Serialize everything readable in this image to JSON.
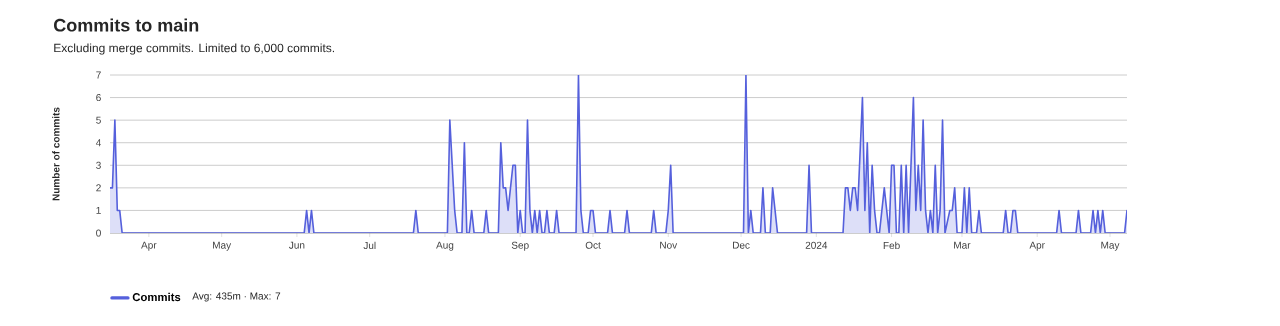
{
  "chart_data": {
    "type": "area",
    "title": "Commits to main",
    "subtitle": "Excluding merge commits. Limited to 6,000 commits.",
    "ylabel": "Number of commits",
    "annotations": [
      "Avg: 435m · Max: 7"
    ],
    "x": [
      "2023-03-16",
      "2023-03-17",
      "2023-03-18",
      "2023-03-19",
      "2023-03-20",
      "2023-03-21",
      "2023-06-04",
      "2023-06-05",
      "2023-06-06",
      "2023-06-07",
      "2023-06-08",
      "2023-07-19",
      "2023-07-20",
      "2023-07-21",
      "2023-08-02",
      "2023-08-03",
      "2023-08-04",
      "2023-08-05",
      "2023-08-06",
      "2023-08-08",
      "2023-08-09",
      "2023-08-10",
      "2023-08-11",
      "2023-08-12",
      "2023-08-13",
      "2023-08-17",
      "2023-08-18",
      "2023-08-19",
      "2023-08-23",
      "2023-08-24",
      "2023-08-25",
      "2023-08-26",
      "2023-08-27",
      "2023-08-28",
      "2023-08-29",
      "2023-08-30",
      "2023-08-31",
      "2023-09-01",
      "2023-09-02",
      "2023-09-03",
      "2023-09-04",
      "2023-09-05",
      "2023-09-06",
      "2023-09-07",
      "2023-09-08",
      "2023-09-09",
      "2023-09-10",
      "2023-09-11",
      "2023-09-12",
      "2023-09-13",
      "2023-09-15",
      "2023-09-16",
      "2023-09-17",
      "2023-09-24",
      "2023-09-25",
      "2023-09-26",
      "2023-09-27",
      "2023-09-29",
      "2023-09-30",
      "2023-10-01",
      "2023-10-02",
      "2023-10-07",
      "2023-10-08",
      "2023-10-09",
      "2023-10-14",
      "2023-10-15",
      "2023-10-16",
      "2023-10-25",
      "2023-10-26",
      "2023-10-27",
      "2023-10-31",
      "2023-11-01",
      "2023-11-02",
      "2023-11-03",
      "2023-12-02",
      "2023-12-03",
      "2023-12-04",
      "2023-12-05",
      "2023-12-06",
      "2023-12-09",
      "2023-12-10",
      "2023-12-11",
      "2023-12-13",
      "2023-12-14",
      "2023-12-15",
      "2023-12-16",
      "2023-12-28",
      "2023-12-29",
      "2023-12-30",
      "2024-01-12",
      "2024-01-13",
      "2024-01-14",
      "2024-01-15",
      "2024-01-16",
      "2024-01-17",
      "2024-01-18",
      "2024-01-20",
      "2024-01-21",
      "2024-01-22",
      "2024-01-23",
      "2024-01-24",
      "2024-01-25",
      "2024-01-26",
      "2024-01-27",
      "2024-01-29",
      "2024-01-31",
      "2024-02-01",
      "2024-02-02",
      "2024-02-03",
      "2024-02-04",
      "2024-02-05",
      "2024-02-06",
      "2024-02-07",
      "2024-02-08",
      "2024-02-10",
      "2024-02-11",
      "2024-02-12",
      "2024-02-13",
      "2024-02-14",
      "2024-02-15",
      "2024-02-16",
      "2024-02-17",
      "2024-02-18",
      "2024-02-19",
      "2024-02-20",
      "2024-02-21",
      "2024-02-22",
      "2024-02-23",
      "2024-02-25",
      "2024-02-26",
      "2024-02-27",
      "2024-02-28",
      "2024-03-01",
      "2024-03-02",
      "2024-03-03",
      "2024-03-04",
      "2024-03-05",
      "2024-03-07",
      "2024-03-08",
      "2024-03-09",
      "2024-03-18",
      "2024-03-19",
      "2024-03-20",
      "2024-03-21",
      "2024-03-22",
      "2024-03-23",
      "2024-03-24",
      "2024-04-09",
      "2024-04-10",
      "2024-04-11",
      "2024-04-17",
      "2024-04-18",
      "2024-04-19",
      "2024-04-23",
      "2024-04-24",
      "2024-04-25",
      "2024-04-26",
      "2024-04-27",
      "2024-04-28",
      "2024-04-29",
      "2024-05-07",
      "2024-05-08"
    ],
    "series": [
      {
        "name": "Commits",
        "color": "#5560dc",
        "values": [
          2,
          2,
          5,
          1,
          1,
          0,
          0,
          1,
          0,
          1,
          0,
          0,
          1,
          0,
          0,
          5,
          3,
          1,
          0,
          0,
          4,
          0,
          0,
          1,
          0,
          0,
          1,
          0,
          0,
          4,
          2,
          2,
          1,
          2,
          3,
          3,
          0,
          1,
          0,
          0,
          5,
          1,
          0,
          1,
          0,
          1,
          0,
          0,
          1,
          0,
          0,
          1,
          0,
          0,
          7,
          1,
          0,
          0,
          1,
          1,
          0,
          0,
          1,
          0,
          0,
          1,
          0,
          0,
          1,
          0,
          0,
          1,
          3,
          0,
          0,
          7,
          0,
          1,
          0,
          0,
          2,
          0,
          0,
          2,
          1,
          0,
          0,
          3,
          0,
          0,
          2,
          2,
          1,
          2,
          2,
          1,
          6,
          1,
          4,
          0,
          3,
          1,
          0,
          0,
          2,
          0,
          3,
          3,
          0,
          0,
          3,
          0,
          3,
          0,
          6,
          1,
          3,
          1,
          5,
          1,
          0,
          1,
          0,
          3,
          0,
          1,
          5,
          0,
          1,
          1,
          2,
          0,
          0,
          2,
          0,
          2,
          0,
          0,
          1,
          0,
          0,
          1,
          0,
          0,
          1,
          1,
          0,
          0,
          1,
          0,
          0,
          1,
          0,
          0,
          1,
          0,
          1,
          0,
          1,
          0,
          0,
          1
        ]
      }
    ],
    "xlim": [
      "2023-03-16",
      "2024-05-08"
    ],
    "xticks": [
      {
        "value": "2023-04-01",
        "label": "Apr"
      },
      {
        "value": "2023-05-01",
        "label": "May"
      },
      {
        "value": "2023-06-01",
        "label": "Jun"
      },
      {
        "value": "2023-07-01",
        "label": "Jul"
      },
      {
        "value": "2023-08-01",
        "label": "Aug"
      },
      {
        "value": "2023-09-01",
        "label": "Sep"
      },
      {
        "value": "2023-10-01",
        "label": "Oct"
      },
      {
        "value": "2023-11-01",
        "label": "Nov"
      },
      {
        "value": "2023-12-01",
        "label": "Dec"
      },
      {
        "value": "2024-01-01",
        "label": "2024"
      },
      {
        "value": "2024-02-01",
        "label": "Feb"
      },
      {
        "value": "2024-03-01",
        "label": "Mar"
      },
      {
        "value": "2024-04-01",
        "label": "Apr"
      },
      {
        "value": "2024-05-01",
        "label": "May"
      }
    ],
    "ylim": [
      0,
      7
    ],
    "yticks": [
      0,
      1,
      2,
      3,
      4,
      5,
      6,
      7
    ],
    "grid": "y",
    "legend": "bottom left",
    "marker": "none",
    "line_style": "solid"
  }
}
